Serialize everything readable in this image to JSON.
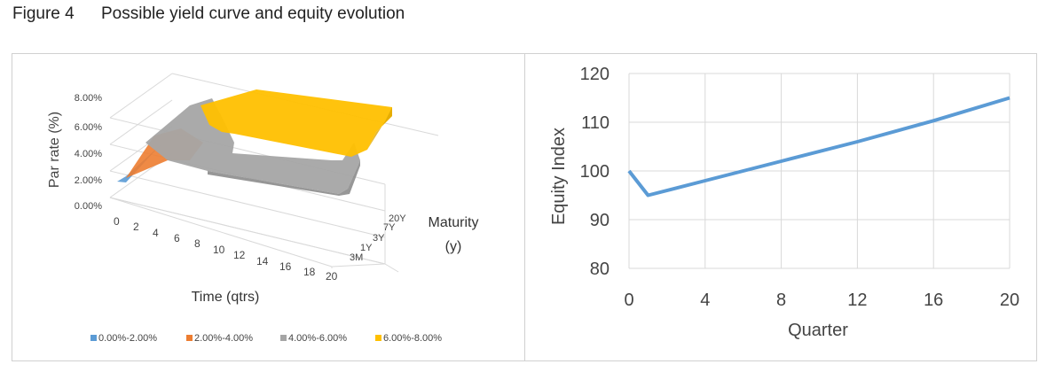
{
  "figure": {
    "number": "Figure 4",
    "title": "Possible yield curve and equity evolution"
  },
  "surface_chart": {
    "z_axis_label": "Par rate (%)",
    "z_ticks": [
      "0.00%",
      "2.00%",
      "4.00%",
      "6.00%",
      "8.00%"
    ],
    "x_axis_label": "Time (qtrs)",
    "x_ticks": [
      "0",
      "2",
      "4",
      "6",
      "8",
      "10",
      "12",
      "14",
      "16",
      "18",
      "20"
    ],
    "depth_axis_label_line1": "Maturity",
    "depth_axis_label_line2": "(y)",
    "depth_ticks": [
      "3M",
      "1Y",
      "3Y",
      "7Y",
      "20Y"
    ],
    "legend": [
      {
        "label": "0.00%-2.00%",
        "color": "#5B9BD5"
      },
      {
        "label": "2.00%-4.00%",
        "color": "#ED7D31"
      },
      {
        "label": "4.00%-6.00%",
        "color": "#A5A5A5"
      },
      {
        "label": "6.00%-8.00%",
        "color": "#FFC000"
      }
    ]
  },
  "chart_data": [
    {
      "type": "surface",
      "x_ticks": [
        0,
        2,
        4,
        6,
        8,
        10,
        12,
        14,
        16,
        18,
        20
      ],
      "depth_ticks": [
        "3M",
        "1Y",
        "3Y",
        "7Y",
        "20Y"
      ],
      "zlim": [
        0,
        8
      ],
      "bands": [
        "0.00%-2.00%",
        "2.00%-4.00%",
        "4.00%-6.00%",
        "6.00%-8.00%"
      ]
    },
    {
      "type": "line",
      "xlabel": "Quarter",
      "ylabel": "Equity Index",
      "xlim": [
        0,
        20
      ],
      "ylim": [
        80,
        120
      ],
      "x_ticks": [
        0,
        4,
        8,
        12,
        16,
        20
      ],
      "y_ticks": [
        80,
        90,
        100,
        110,
        120
      ],
      "series": [
        {
          "x": [
            0,
            1,
            4,
            8,
            12,
            16,
            20
          ],
          "y": [
            100,
            95,
            98,
            102,
            106,
            110.3,
            115
          ],
          "color": "#5B9BD5"
        }
      ],
      "grid": true
    }
  ]
}
